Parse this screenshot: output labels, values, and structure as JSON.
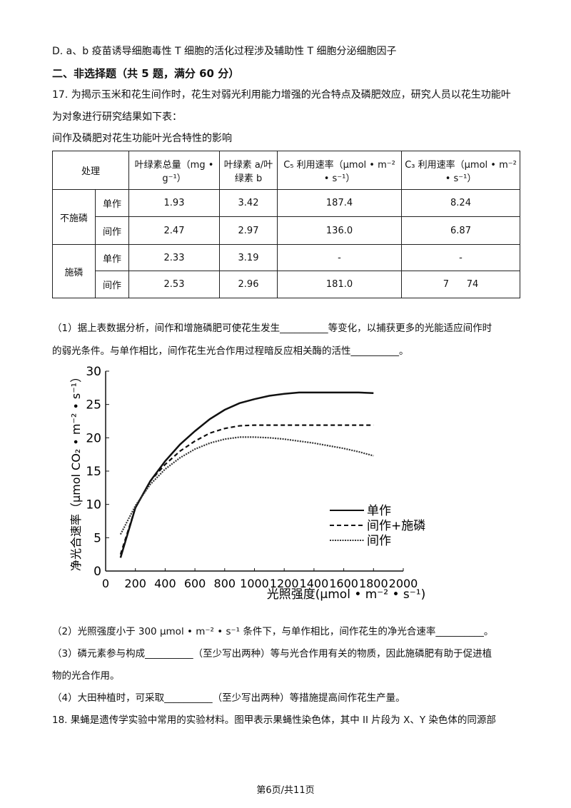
{
  "paragraphs_before": [
    {
      "text": "D. a、b 疫苗诱导细胞毒性 T 细胞的活化过程涉及辅助性 T 细胞分泌细胞因子",
      "top": 0
    },
    {
      "text": "二、非选择题（共 5 题，满分 60 分）",
      "bold": true
    },
    {
      "text": "17. 为揭示玉米和花生间作时，花生对弱光利用能力增强的光合特点及磷肥效应，研究人员以花生功能叶"
    },
    {
      "text": "为对象进行研究结果如下表："
    }
  ],
  "table": {
    "caption": "间作及磷肥对花生功能叶光合特性的影响",
    "header": [
      "处理",
      "叶绿素总量（mg • g⁻¹）",
      "叶绿素 a/叶绿素 b",
      "C₅ 利用速率（μmol • m⁻² • s⁻¹）",
      "C₃ 利用速率（μmol • m⁻² • s⁻¹）"
    ],
    "groups": [
      {
        "name": "不施磷",
        "rows": [
          [
            "单作",
            "1.93",
            "3.42",
            "187.4",
            "8.24"
          ],
          [
            "间作",
            "2.47",
            "2.97",
            "136.0",
            "6.87"
          ]
        ]
      },
      {
        "name": "施磷",
        "rows": [
          [
            "单作",
            "2.33",
            "3.19",
            "-",
            "-"
          ],
          [
            "间作",
            "2.53",
            "2.96",
            "181.0",
            "7      74"
          ]
        ]
      }
    ]
  },
  "paragraphs_middle": [
    "（1）据上表数据分析，间作和增施磷肥可使花生发生__________等变化，以捕获更多的光能适应间作时",
    "的弱光条件。与单作相比，间作花生光合作用过程暗反应相关酶的活性__________。"
  ],
  "chart_data": {
    "type": "line",
    "x_label": "光照强度(μmol • m⁻² • s⁻¹)",
    "y_label": "净光合速率（μmol CO₂ • m⁻² • s⁻¹）",
    "x": [
      100,
      200,
      300,
      400,
      500,
      600,
      700,
      800,
      900,
      1000,
      1100,
      1200,
      1300,
      1400,
      1500,
      1600,
      1700,
      1800
    ],
    "series": [
      {
        "name": "单作",
        "color": "#111111",
        "style": "solid",
        "values": [
          2,
          9.5,
          13.5,
          16.5,
          19,
          21,
          22.8,
          24.2,
          25.2,
          25.8,
          26.3,
          26.6,
          26.8,
          26.8,
          26.8,
          26.8,
          26.8,
          26.7
        ]
      },
      {
        "name": "间作+施磷",
        "color": "#111111",
        "style": "dashed",
        "values": [
          2.5,
          9.5,
          13.5,
          16,
          18,
          19.5,
          20.7,
          21.4,
          21.8,
          21.9,
          21.9,
          21.9,
          21.9,
          21.9,
          21.9,
          21.9,
          21.9,
          21.9
        ]
      },
      {
        "name": "间作",
        "color": "#333333",
        "style": "dotted",
        "values": [
          5.5,
          9.8,
          13,
          15.3,
          17,
          18.3,
          19.2,
          19.8,
          20.1,
          20.1,
          20,
          19.8,
          19.5,
          19.2,
          18.8,
          18.4,
          17.9,
          17.3
        ]
      }
    ],
    "xlim": [
      0,
      2000
    ],
    "xticks": [
      0,
      200,
      400,
      600,
      800,
      1000,
      1200,
      1400,
      1600,
      1800,
      2000
    ],
    "ylim": [
      0,
      30
    ],
    "yticks": [
      0,
      5,
      10,
      15,
      20,
      25,
      30
    ],
    "grid": false
  },
  "paragraphs_after": [
    "（2）光照强度小于 300 μmol • m⁻² • s⁻¹ 条件下，与单作相比，间作花生的净光合速率__________。",
    "（3）磷元素参与构成__________（至少写出两种）等与光合作用有关的物质，因此施磷肥有助于促进植",
    "物的光合作用。",
    "（4）大田种植时，可采取__________（至少写出两种）等措施提高间作花生产量。",
    "18. 果蝇是遗传学实验中常用的实验材料。图甲表示果蝇性染色体，其中 II 片段为 X、Y 染色体的同源部"
  ],
  "footer": "第6页/共11页"
}
